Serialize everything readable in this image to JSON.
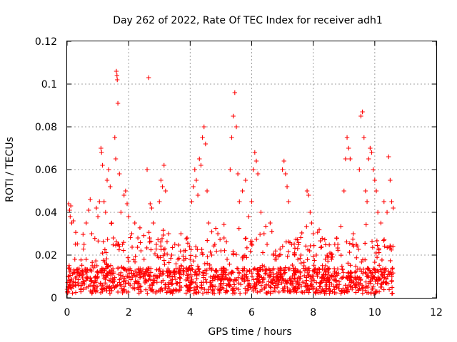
{
  "chart_data": {
    "type": "scatter",
    "title": "Day 262 of 2022, Rate Of TEC Index for receiver adh1",
    "xlabel": "GPS time / hours",
    "ylabel": "ROTI / TECUs",
    "xlim": [
      0,
      12
    ],
    "ylim": [
      0,
      0.12
    ],
    "x_ticks": [
      0,
      2,
      4,
      6,
      8,
      10,
      12
    ],
    "x_tick_labels": [
      "0",
      "2",
      "4",
      "6",
      "8",
      "10",
      "12"
    ],
    "y_ticks": [
      0,
      0.02,
      0.04,
      0.06,
      0.08,
      0.1,
      0.12
    ],
    "y_tick_labels": [
      "0",
      "0.02",
      "0.04",
      "0.06",
      "0.08",
      "0.1",
      "0.12"
    ],
    "grid": true,
    "marker": "+",
    "color": "#ff0000",
    "series": [
      {
        "points": [
          [
            0.0,
            0.004
          ],
          [
            0.05,
            0.044
          ],
          [
            0.08,
            0.041
          ],
          [
            0.1,
            0.038
          ],
          [
            0.15,
            0.035
          ],
          [
            0.12,
            0.043
          ],
          [
            0.2,
            0.036
          ],
          [
            0.25,
            0.018
          ],
          [
            0.3,
            0.01
          ],
          [
            0.35,
            0.007
          ],
          [
            0.45,
            0.012
          ],
          [
            0.55,
            0.025
          ],
          [
            0.62,
            0.035
          ],
          [
            0.7,
            0.041
          ],
          [
            0.75,
            0.046
          ],
          [
            0.8,
            0.03
          ],
          [
            0.9,
            0.015
          ],
          [
            0.95,
            0.042
          ],
          [
            1.0,
            0.038
          ],
          [
            1.05,
            0.045
          ],
          [
            1.1,
            0.07
          ],
          [
            1.12,
            0.068
          ],
          [
            1.15,
            0.062
          ],
          [
            1.2,
            0.045
          ],
          [
            1.25,
            0.04
          ],
          [
            1.3,
            0.055
          ],
          [
            1.35,
            0.06
          ],
          [
            1.4,
            0.052
          ],
          [
            1.45,
            0.035
          ],
          [
            1.5,
            0.028
          ],
          [
            1.55,
            0.075
          ],
          [
            1.58,
            0.065
          ],
          [
            1.6,
            0.106
          ],
          [
            1.62,
            0.104
          ],
          [
            1.63,
            0.102
          ],
          [
            1.65,
            0.091
          ],
          [
            1.7,
            0.058
          ],
          [
            1.75,
            0.04
          ],
          [
            1.8,
            0.025
          ],
          [
            1.85,
            0.048
          ],
          [
            1.9,
            0.05
          ],
          [
            1.95,
            0.044
          ],
          [
            2.0,
            0.038
          ],
          [
            2.1,
            0.03
          ],
          [
            2.2,
            0.035
          ],
          [
            2.3,
            0.028
          ],
          [
            2.4,
            0.022
          ],
          [
            2.5,
            0.018
          ],
          [
            2.6,
            0.06
          ],
          [
            2.65,
            0.103
          ],
          [
            2.7,
            0.044
          ],
          [
            2.75,
            0.042
          ],
          [
            2.8,
            0.035
          ],
          [
            2.9,
            0.025
          ],
          [
            3.0,
            0.045
          ],
          [
            3.05,
            0.055
          ],
          [
            3.1,
            0.052
          ],
          [
            3.15,
            0.062
          ],
          [
            3.2,
            0.05
          ],
          [
            3.3,
            0.03
          ],
          [
            3.4,
            0.02
          ],
          [
            3.5,
            0.025
          ],
          [
            3.6,
            0.018
          ],
          [
            3.7,
            0.03
          ],
          [
            3.8,
            0.022
          ],
          [
            3.9,
            0.028
          ],
          [
            4.0,
            0.018
          ],
          [
            4.05,
            0.045
          ],
          [
            4.1,
            0.052
          ],
          [
            4.15,
            0.06
          ],
          [
            4.2,
            0.055
          ],
          [
            4.25,
            0.048
          ],
          [
            4.3,
            0.065
          ],
          [
            4.35,
            0.062
          ],
          [
            4.4,
            0.075
          ],
          [
            4.45,
            0.08
          ],
          [
            4.5,
            0.072
          ],
          [
            4.55,
            0.05
          ],
          [
            4.6,
            0.035
          ],
          [
            4.7,
            0.02
          ],
          [
            4.8,
            0.025
          ],
          [
            4.9,
            0.03
          ],
          [
            5.0,
            0.022
          ],
          [
            5.1,
            0.028
          ],
          [
            5.2,
            0.018
          ],
          [
            5.3,
            0.06
          ],
          [
            5.35,
            0.075
          ],
          [
            5.4,
            0.085
          ],
          [
            5.45,
            0.096
          ],
          [
            5.5,
            0.08
          ],
          [
            5.55,
            0.058
          ],
          [
            5.6,
            0.045
          ],
          [
            5.7,
            0.05
          ],
          [
            5.8,
            0.055
          ],
          [
            5.9,
            0.038
          ],
          [
            6.0,
            0.045
          ],
          [
            6.05,
            0.06
          ],
          [
            6.1,
            0.068
          ],
          [
            6.15,
            0.064
          ],
          [
            6.2,
            0.058
          ],
          [
            6.3,
            0.04
          ],
          [
            6.4,
            0.03
          ],
          [
            6.5,
            0.025
          ],
          [
            6.6,
            0.035
          ],
          [
            6.7,
            0.02
          ],
          [
            6.8,
            0.018
          ],
          [
            6.9,
            0.02
          ],
          [
            7.0,
            0.06
          ],
          [
            7.05,
            0.064
          ],
          [
            7.1,
            0.058
          ],
          [
            7.15,
            0.052
          ],
          [
            7.2,
            0.045
          ],
          [
            7.3,
            0.025
          ],
          [
            7.4,
            0.02
          ],
          [
            7.5,
            0.018
          ],
          [
            7.6,
            0.02
          ],
          [
            7.7,
            0.015
          ],
          [
            7.8,
            0.05
          ],
          [
            7.85,
            0.048
          ],
          [
            7.9,
            0.04
          ],
          [
            7.95,
            0.035
          ],
          [
            8.0,
            0.03
          ],
          [
            8.1,
            0.02
          ],
          [
            8.2,
            0.012
          ],
          [
            8.3,
            0.01
          ],
          [
            8.4,
            0.015
          ],
          [
            8.5,
            0.012
          ],
          [
            8.6,
            0.018
          ],
          [
            8.7,
            0.025
          ],
          [
            8.8,
            0.025
          ],
          [
            9.0,
            0.05
          ],
          [
            9.05,
            0.065
          ],
          [
            9.1,
            0.075
          ],
          [
            9.15,
            0.07
          ],
          [
            9.2,
            0.065
          ],
          [
            9.3,
            0.03
          ],
          [
            9.4,
            0.025
          ],
          [
            9.5,
            0.06
          ],
          [
            9.55,
            0.085
          ],
          [
            9.6,
            0.087
          ],
          [
            9.65,
            0.075
          ],
          [
            9.7,
            0.05
          ],
          [
            9.75,
            0.045
          ],
          [
            9.8,
            0.065
          ],
          [
            9.85,
            0.07
          ],
          [
            9.9,
            0.068
          ],
          [
            9.95,
            0.06
          ],
          [
            10.0,
            0.055
          ],
          [
            10.05,
            0.05
          ],
          [
            10.1,
            0.04
          ],
          [
            10.2,
            0.035
          ],
          [
            10.3,
            0.045
          ],
          [
            10.4,
            0.04
          ],
          [
            10.45,
            0.066
          ],
          [
            10.5,
            0.055
          ],
          [
            10.55,
            0.045
          ],
          [
            10.6,
            0.042
          ]
        ]
      }
    ]
  }
}
